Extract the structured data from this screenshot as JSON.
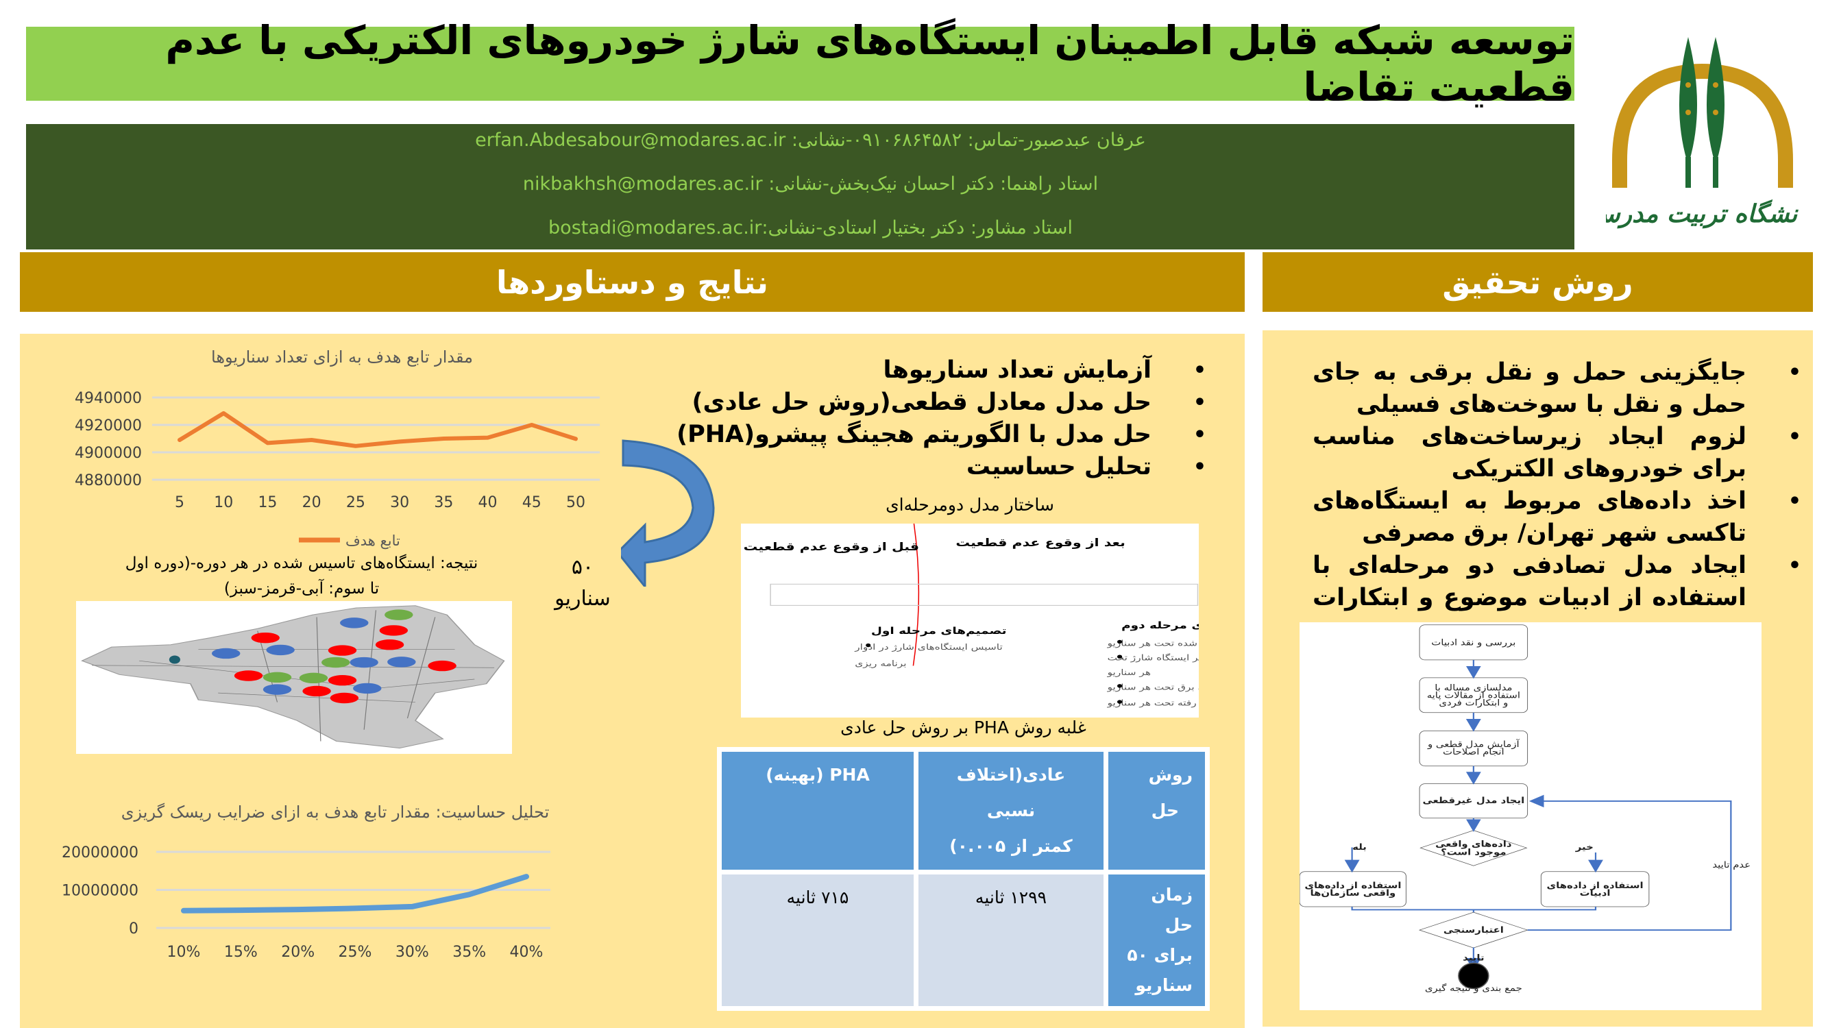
{
  "title": "توسعه شبکه قابل اطمینان ایستگاه‌های شارژ خودروهای الکتریکی با عدم قطعیت تقاضا",
  "info": [
    "عرفان عبدصبور-تماس: ۰۹۱۰۶۸۶۴۵۸۲-نشانی: erfan.Abdesabour@modares.ac.ir",
    "استاد راهنما: دکتر احسان نیک‌بخش-نشانی: nikbakhsh@modares.ac.ir",
    "استاد مشاور: دکتر بختیار استادی-نشانی:bostadi@modares.ac.ir"
  ],
  "logo": {
    "text": "دانشگاه تربیت مدرس",
    "colors": {
      "arc": "#c9961a",
      "tree": "#1f6b35"
    }
  },
  "results": {
    "header": "نتایج و دستاوردها",
    "bullets": [
      "آزمایش تعداد سناریوها",
      "حل مدل معادل قطعی(روش حل عادی)",
      "حل مدل با الگوریتم هجینگ پیشرو(PHA)",
      "تحلیل حساسیت"
    ],
    "map_caption": [
      "نتیجه: ایستگاه‌های تاسیس شده در هر دوره-(دوره اول",
      "تا سوم: آبی-قرمز-سبز)"
    ],
    "scenario_label": [
      "۵۰",
      "سناریو"
    ],
    "two_stage": {
      "caption": "ساختار مدل دومرحله‌ای",
      "after": "بعد از وقوع عدم قطعیت",
      "before": "قبل از وقوع عدم قطعیت",
      "stage2_title": "تصمیم‌های مرحله دوم",
      "stage2_items": [
        "جریان پوشش داده شده تحت هر سناریو",
        "جریان الکتریکی از شبکه به هر ایستگاه شارژ تحت",
        "هر سناریو",
        "کمبود جریان برق تحت هر سناریو",
        "تقاضای از دست رفته تحت هر سناریو"
      ],
      "stage1_title": "تصمیم‌های مرحله اول",
      "stage1_items": [
        "تاسیس ایستگاه‌های شارژ در ادوار",
        "برنامه ریزی"
      ]
    },
    "table": {
      "caption": "غلبه روش PHA بر روش حل عادی",
      "header": [
        [
          "روش",
          "حل"
        ],
        [
          "عادی(اختلاف نسبی",
          "کمتر از ۰.۰۰۵)"
        ],
        [
          "PHA (بهینه)"
        ]
      ],
      "row": [
        [
          "زمان",
          "حل برای ۵۰",
          "سناریو"
        ],
        [
          "۱۲۹۹ ثانیه"
        ],
        [
          "۷۱۵ ثانیه"
        ]
      ]
    }
  },
  "method": {
    "header": "روش تحقیق",
    "bullets": [
      "جایگزینی حمل و نقل برقی به جای حمل و نقل با سوخت‌های فسیلی",
      "لزوم ایجاد زیرساخت‌های مناسب برای خودروهای الکتریکی",
      "اخذ داده‌های مربوط به ایستگاه‌های تاکسی شهر تهران/ برق مصرفی",
      "ایجاد مدل تصادفی دو مرحله‌ای با استفاده از ادبیات موضوع و ابتکارات فردی"
    ],
    "flow": {
      "steps": [
        "بررسی و نقد ادبیات",
        "مدلسازی مساله با",
        "استفاده از مقالات پایه",
        "و ابتکارات فردی",
        "آزمایش مدل قطعی و",
        "انجام اصلاحات",
        "ایجاد مدل غیرقطعی"
      ],
      "decision": [
        "داده‌های واقعی",
        "موجود است؟"
      ],
      "yes": "بله",
      "no": "خیر",
      "left_box": [
        "استفاده از داده‌های",
        "واقعی سازمان‌ها"
      ],
      "right_box": [
        "استفاده از داده‌های",
        "ادبیات"
      ],
      "validation": "اعتبارسنجی",
      "reject": "عدم تایید",
      "accept": "تایید",
      "end": "جمع بندی و نتیجه گیری"
    }
  },
  "colors": {
    "title_bg": "#92d050",
    "info_bg": "#3b5724",
    "header_bg": "#bf9000",
    "panel_bg": "#ffe699",
    "orange": "#ed7d31",
    "blue": "#5b9bd5"
  },
  "chart_data": [
    {
      "type": "line",
      "title": "مقدار تابع هدف به ازای تعداد سناریوها",
      "categories": [
        "5",
        "10",
        "15",
        "20",
        "25",
        "30",
        "35",
        "40",
        "45",
        "50"
      ],
      "series": [
        {
          "name": "تابع هدف",
          "values": [
            4909000,
            4928500,
            4906800,
            4909000,
            4904600,
            4907800,
            4910000,
            4910700,
            4920000,
            4909800
          ],
          "color": "#ed7d31"
        }
      ],
      "yticks": [
        "4880000",
        "4900000",
        "4920000",
        "4940000"
      ],
      "ylim": [
        4880000,
        4940000
      ],
      "grid": true,
      "legend": "bottom"
    },
    {
      "type": "line",
      "title": "تحلیل حساسیت: مقدار تابع هدف به ازای ضرایب ریسک گریزی",
      "categories": [
        "10%",
        "15%",
        "20%",
        "25%",
        "30%",
        "35%",
        "40%"
      ],
      "series": [
        {
          "values": [
            4550000,
            4670000,
            4850000,
            5150000,
            5600000,
            8800000,
            13500000
          ],
          "color": "#5b9bd5"
        }
      ],
      "yticks": [
        "0",
        "10000000",
        "20000000"
      ],
      "ylim": [
        0,
        20000000
      ],
      "grid": true,
      "legend": "none"
    }
  ]
}
